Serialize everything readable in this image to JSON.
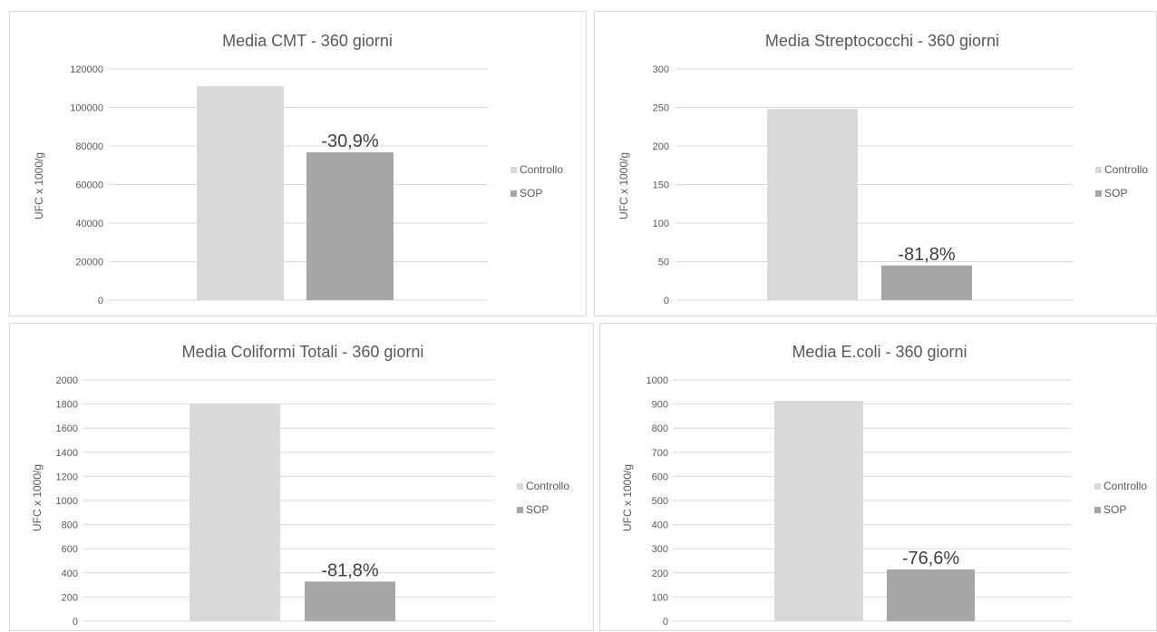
{
  "chart_data": [
    {
      "type": "bar",
      "title": "Media CMT - 360 giorni",
      "ylabel": "UFC x 1000/g",
      "ylim": [
        0,
        120000
      ],
      "yticks": [
        0,
        20000,
        40000,
        60000,
        80000,
        100000,
        120000
      ],
      "series": [
        {
          "name": "Controllo",
          "values": [
            111000
          ],
          "color": "#d9d9d9"
        },
        {
          "name": "SOP",
          "values": [
            76700
          ],
          "color": "#a6a6a6",
          "data_label": "-30,9%"
        }
      ],
      "legend": "right",
      "grid": true
    },
    {
      "type": "bar",
      "title": "Media Streptococchi - 360 giorni",
      "ylabel": "UFC x 1000/g",
      "ylim": [
        0,
        300
      ],
      "yticks": [
        0,
        50,
        100,
        150,
        200,
        250,
        300
      ],
      "series": [
        {
          "name": "Controllo",
          "values": [
            248
          ],
          "color": "#d9d9d9"
        },
        {
          "name": "SOP",
          "values": [
            45
          ],
          "color": "#a6a6a6",
          "data_label": "-81,8%"
        }
      ],
      "legend": "right",
      "grid": true
    },
    {
      "type": "bar",
      "title": "Media Coliformi Totali - 360 giorni",
      "ylabel": "UFC x 1000/g",
      "ylim": [
        0,
        2000
      ],
      "yticks": [
        0,
        200,
        400,
        600,
        800,
        1000,
        1200,
        1400,
        1600,
        1800,
        2000
      ],
      "series": [
        {
          "name": "Controllo",
          "values": [
            1805
          ],
          "color": "#d9d9d9"
        },
        {
          "name": "SOP",
          "values": [
            328
          ],
          "color": "#a6a6a6",
          "data_label": "-81,8%"
        }
      ],
      "legend": "right",
      "grid": true
    },
    {
      "type": "bar",
      "title": "Media E.coli - 360 giorni",
      "ylabel": "UFC x 1000/g",
      "ylim": [
        0,
        1000
      ],
      "yticks": [
        0,
        100,
        200,
        300,
        400,
        500,
        600,
        700,
        800,
        900,
        1000
      ],
      "series": [
        {
          "name": "Controllo",
          "values": [
            913
          ],
          "color": "#d9d9d9"
        },
        {
          "name": "SOP",
          "values": [
            214
          ],
          "color": "#a6a6a6",
          "data_label": "-76,6%"
        }
      ],
      "legend": "right",
      "grid": true
    }
  ]
}
